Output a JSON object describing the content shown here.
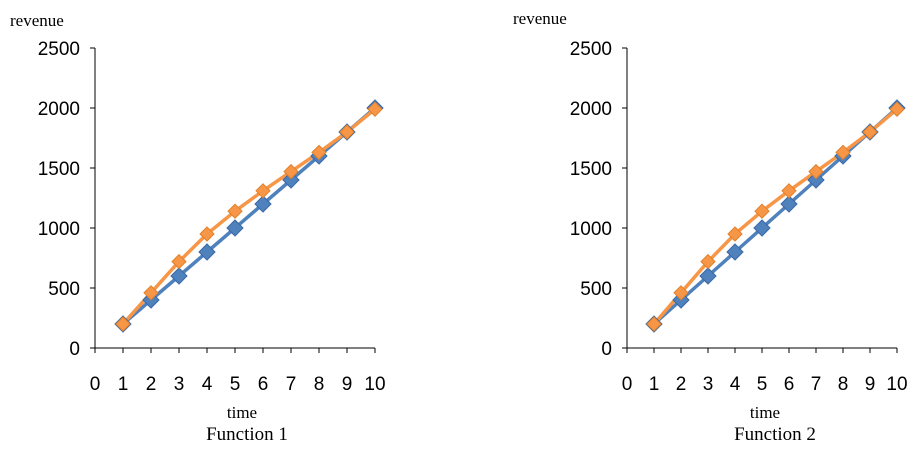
{
  "colors": {
    "series_a": "#4F81BD",
    "series_b": "#F79646",
    "axis": "#000000"
  },
  "chart_data": [
    {
      "type": "line",
      "caption": "Function 1",
      "xlabel": "time",
      "ylabel": "revenue",
      "xlim": [
        0,
        10
      ],
      "ylim": [
        0,
        2500
      ],
      "x_ticks": [
        "0",
        "1",
        "2",
        "3",
        "4",
        "5",
        "6",
        "7",
        "8",
        "9",
        "10"
      ],
      "y_ticks": [
        "0",
        "500",
        "1000",
        "1500",
        "2000",
        "2500"
      ],
      "grid": false,
      "marker": "diamond",
      "x": [
        1,
        2,
        3,
        4,
        5,
        6,
        7,
        8,
        9,
        10
      ],
      "series": [
        {
          "values": [
            200,
            400,
            600,
            800,
            1000,
            1200,
            1400,
            1600,
            1800,
            2000
          ],
          "color": "#4F81BD"
        },
        {
          "values": [
            200,
            460,
            720,
            950,
            1140,
            1310,
            1470,
            1630,
            1800,
            1990
          ],
          "color": "#F79646"
        }
      ]
    },
    {
      "type": "line",
      "caption": "Function 2",
      "xlabel": "time",
      "ylabel": "revenue",
      "xlim": [
        0,
        10
      ],
      "ylim": [
        0,
        2500
      ],
      "x_ticks": [
        "0",
        "1",
        "2",
        "3",
        "4",
        "5",
        "6",
        "7",
        "8",
        "9",
        "10"
      ],
      "y_ticks": [
        "0",
        "500",
        "1000",
        "1500",
        "2000",
        "2500"
      ],
      "grid": false,
      "marker": "diamond",
      "x": [
        1,
        2,
        3,
        4,
        5,
        6,
        7,
        8,
        9,
        10
      ],
      "series": [
        {
          "values": [
            200,
            400,
            600,
            800,
            1000,
            1200,
            1400,
            1600,
            1800,
            2000
          ],
          "color": "#4F81BD"
        },
        {
          "values": [
            200,
            460,
            720,
            950,
            1140,
            1310,
            1470,
            1630,
            1800,
            1990
          ],
          "color": "#F79646"
        }
      ]
    }
  ]
}
